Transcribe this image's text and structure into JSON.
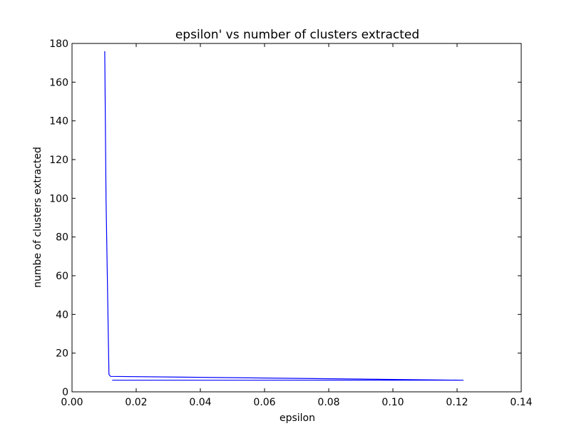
{
  "chart_data": {
    "type": "line",
    "title": "epsilon' vs number of clusters extracted",
    "xlabel": "epsilon",
    "ylabel": "numbe of clusters extracted",
    "xlim": [
      0.0,
      0.14
    ],
    "ylim": [
      0,
      180
    ],
    "xticks": [
      "0.00",
      "0.02",
      "0.04",
      "0.06",
      "0.08",
      "0.10",
      "0.12",
      "0.14"
    ],
    "yticks": [
      "0",
      "20",
      "40",
      "60",
      "80",
      "100",
      "120",
      "140",
      "160",
      "180"
    ],
    "grid": false,
    "legend": "none",
    "series": [
      {
        "color": "#0000ff",
        "x": [
          0.0102,
          0.0106,
          0.0115,
          0.012,
          0.122,
          0.0125
        ],
        "y": [
          176,
          100,
          9,
          8,
          6,
          6
        ]
      }
    ]
  }
}
